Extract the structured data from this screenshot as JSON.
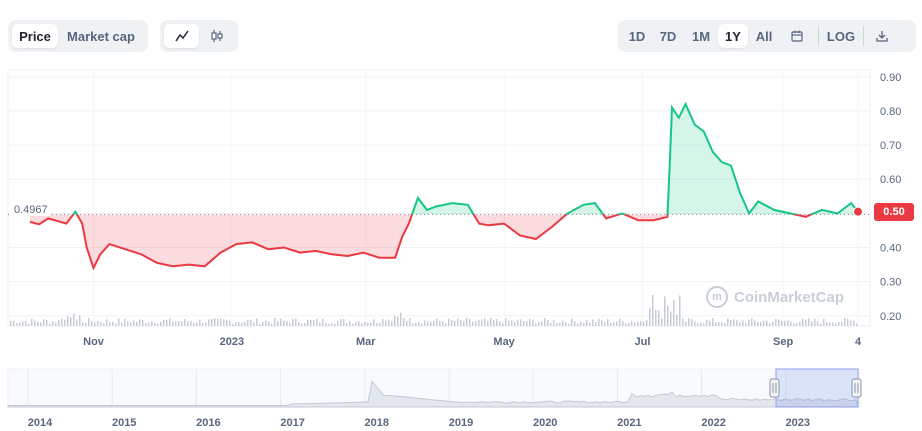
{
  "toolbar": {
    "type_tabs": [
      {
        "label": "Price",
        "active": true
      },
      {
        "label": "Market cap",
        "active": false
      }
    ],
    "chart_style_icons": [
      {
        "icon": "line-chart-icon",
        "glyph": "⟋",
        "active": true
      },
      {
        "icon": "candlestick-icon",
        "glyph": "⫾",
        "active": false
      }
    ],
    "ranges": [
      {
        "label": "1D",
        "active": false
      },
      {
        "label": "7D",
        "active": false
      },
      {
        "label": "1M",
        "active": false
      },
      {
        "label": "1Y",
        "active": true
      },
      {
        "label": "All",
        "active": false
      }
    ],
    "calendar_icon": "calendar-icon",
    "log_label": "LOG",
    "download_icon": "download-icon"
  },
  "reference_label": "0.4967",
  "current_badge": "0.50",
  "watermark": "CoinMarketCap",
  "colors": {
    "up": "#16c784",
    "down": "#ea3943",
    "badge": "#ea3943"
  },
  "chart_data": {
    "type": "line",
    "x_ticks": [
      "Nov",
      "2023",
      "Mar",
      "May",
      "Jul",
      "Sep",
      "4"
    ],
    "y_ticks": [
      "0.90",
      "0.80",
      "0.70",
      "0.60",
      "0.50",
      "0.40",
      "0.30",
      "0.20"
    ],
    "ylim": [
      0.17,
      0.92
    ],
    "baseline": 0.4967,
    "series": [
      {
        "x": [
          "2022-10-04",
          "2022-10-08",
          "2022-10-12",
          "2022-10-16",
          "2022-10-20",
          "2022-10-24",
          "2022-10-27",
          "2022-10-29",
          "2022-11-01",
          "2022-11-04",
          "2022-11-08",
          "2022-11-15",
          "2022-11-22",
          "2022-11-29",
          "2022-12-06",
          "2022-12-13",
          "2022-12-20",
          "2022-12-27",
          "2023-01-03",
          "2023-01-10",
          "2023-01-17",
          "2023-01-24",
          "2023-01-31",
          "2023-02-07",
          "2023-02-14",
          "2023-02-21",
          "2023-02-28",
          "2023-03-07",
          "2023-03-14",
          "2023-03-17",
          "2023-03-20",
          "2023-03-24",
          "2023-03-28",
          "2023-04-01",
          "2023-04-08",
          "2023-04-15",
          "2023-04-20",
          "2023-04-24",
          "2023-05-01",
          "2023-05-08",
          "2023-05-15",
          "2023-05-22",
          "2023-05-29",
          "2023-06-05",
          "2023-06-10",
          "2023-06-15",
          "2023-06-22",
          "2023-06-29",
          "2023-07-06",
          "2023-07-12",
          "2023-07-13",
          "2023-07-14",
          "2023-07-17",
          "2023-07-20",
          "2023-07-24",
          "2023-07-28",
          "2023-08-01",
          "2023-08-05",
          "2023-08-09",
          "2023-08-13",
          "2023-08-17",
          "2023-08-21",
          "2023-08-28",
          "2023-09-04",
          "2023-09-11",
          "2023-09-18",
          "2023-09-25",
          "2023-10-01",
          "2023-10-04"
        ],
        "values": [
          0.475,
          0.468,
          0.485,
          0.478,
          0.47,
          0.505,
          0.47,
          0.4,
          0.34,
          0.38,
          0.41,
          0.395,
          0.38,
          0.355,
          0.345,
          0.35,
          0.345,
          0.385,
          0.41,
          0.415,
          0.395,
          0.4,
          0.385,
          0.39,
          0.38,
          0.375,
          0.385,
          0.37,
          0.37,
          0.43,
          0.47,
          0.545,
          0.51,
          0.52,
          0.53,
          0.525,
          0.47,
          0.465,
          0.47,
          0.435,
          0.425,
          0.46,
          0.5,
          0.525,
          0.53,
          0.485,
          0.5,
          0.48,
          0.48,
          0.49,
          0.64,
          0.81,
          0.78,
          0.82,
          0.76,
          0.74,
          0.68,
          0.65,
          0.64,
          0.56,
          0.5,
          0.535,
          0.51,
          0.5,
          0.49,
          0.51,
          0.5,
          0.53,
          0.505
        ]
      }
    ]
  },
  "navigator": {
    "years": [
      "2014",
      "2015",
      "2016",
      "2017",
      "2018",
      "2019",
      "2020",
      "2021",
      "2022",
      "2023"
    ]
  }
}
